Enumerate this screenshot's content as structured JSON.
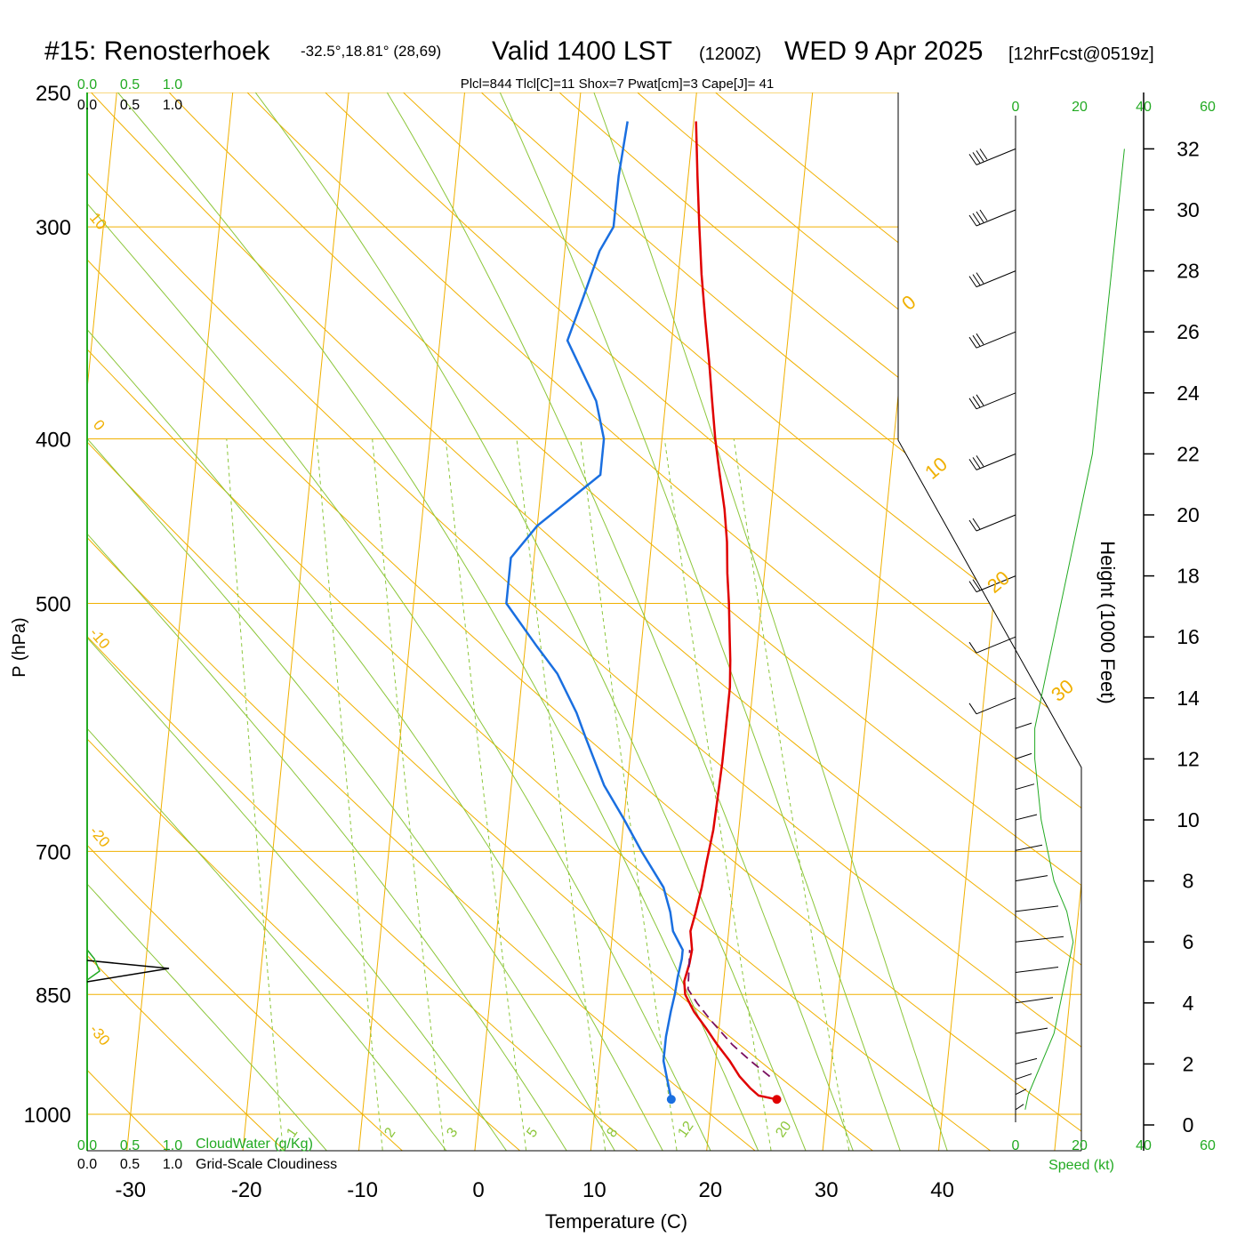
{
  "header": {
    "station": "#15: Renosterhoek",
    "coords": "-32.5°,18.81° (28,69)",
    "valid": "Valid 1400 LST",
    "zulu": "(1200Z)",
    "date": "WED 9 Apr 2025",
    "forecast": "[12hrFcst@0519z]"
  },
  "indices": "Plcl=844 Tlcl[C]=11 Shox=7 Pwat[cm]=3 Cape[J]= 41",
  "colors": {
    "temperature": "#e00000",
    "dewpoint": "#1a6fe0",
    "parcel": "#7a1060",
    "isotherm": "#f0b000",
    "dry_adiabat": "#f0b000",
    "moist_adiabat": "#8cc63a",
    "mixing_ratio": "#8cc63a",
    "cloud_label": "#22aa22",
    "wind_speed_line": "#22aa22",
    "indices_text": "#a0104a"
  },
  "cloud_scale": {
    "top_green": [
      "0.0",
      "0.5",
      "1.0"
    ],
    "top_black": [
      "0.0",
      "0.5",
      "1.0"
    ],
    "bottom_green": [
      "0.0",
      "0.5",
      "1.0"
    ],
    "bottom_black": [
      "0.0",
      "0.5",
      "1.0"
    ],
    "cloudwater_label": "CloudWater (g/Kg)",
    "cloudiness_label": "Grid-Scale Cloudiness"
  },
  "speed_scale": {
    "top": [
      "0",
      "20",
      "40",
      "60"
    ],
    "bottom": [
      "0",
      "20",
      "40",
      "60"
    ],
    "label": "Speed (kt)"
  },
  "mixing_ratio_labels": [
    "1",
    "2",
    "3",
    "5",
    "8",
    "12",
    "20"
  ],
  "dry_adiabat_labels": [
    "10",
    "0",
    "-10",
    "-20",
    "-30"
  ],
  "moist_adiabat_labels": [
    "0",
    "10",
    "20",
    "30"
  ],
  "chart_data": {
    "type": "line",
    "title": "#15: Renosterhoek",
    "xlabel": "Temperature (C)",
    "ylabel": "P (hPa)",
    "y2label": "Height (1000 Feet)",
    "xlim": [
      -34,
      36
    ],
    "ylim": [
      1050,
      250
    ],
    "log_y": true,
    "x_ticks": [
      "-30",
      "-20",
      "-10",
      "0",
      "10",
      "20",
      "30",
      "40"
    ],
    "y_ticks": [
      "250",
      "300",
      "400",
      "500",
      "700",
      "850",
      "1000"
    ],
    "height_ticks": [
      "0",
      "2",
      "4",
      "6",
      "8",
      "10",
      "12",
      "14",
      "16",
      "18",
      "20",
      "22",
      "24",
      "26",
      "28",
      "30",
      "32"
    ],
    "series": [
      {
        "name": "Temperature",
        "p": [
          980,
          975,
          965,
          950,
          930,
          910,
          890,
          870,
          850,
          835,
          815,
          800,
          780,
          760,
          735,
          710,
          680,
          650,
          620,
          590,
          560,
          540,
          520,
          500,
          480,
          460,
          440,
          420,
          400,
          380,
          360,
          340,
          320,
          300,
          280,
          260
        ],
        "t": [
          25.6,
          24.0,
          23.2,
          22.2,
          21.2,
          20.0,
          18.9,
          17.7,
          16.8,
          16.6,
          16.9,
          17.0,
          16.7,
          17.0,
          17.3,
          17.5,
          17.8,
          17.9,
          18.0,
          18.0,
          18.0,
          17.8,
          17.5,
          17.2,
          16.8,
          16.5,
          16.0,
          15.3,
          14.6,
          14.0,
          13.4,
          12.7,
          12.0,
          11.4,
          10.8,
          10.2
        ]
      },
      {
        "name": "Dewpoint",
        "p": [
          980,
          930,
          900,
          870,
          850,
          830,
          810,
          800,
          780,
          760,
          735,
          700,
          670,
          640,
          600,
          580,
          550,
          530,
          500,
          470,
          450,
          420,
          400,
          380,
          350,
          330,
          310,
          300,
          280,
          260
        ],
        "t": [
          16.5,
          15.5,
          15.5,
          15.7,
          15.9,
          16.0,
          16.2,
          16.2,
          15.2,
          14.8,
          14.0,
          11.8,
          10.0,
          8.0,
          6.0,
          5.0,
          3.0,
          1.0,
          -2.0,
          -2.0,
          0.0,
          5.0,
          5.0,
          4.0,
          1.0,
          2.0,
          3.0,
          4.0,
          4.0,
          4.3
        ]
      },
      {
        "name": "Parcel",
        "p": [
          950,
          930,
          910,
          880,
          860,
          844,
          820,
          800
        ],
        "t": [
          24.8,
          23.0,
          21.3,
          19.2,
          17.9,
          17.0,
          16.9,
          16.8
        ]
      }
    ],
    "surface_temperature_marker": 25.6,
    "surface_dewpoint_marker": 16.5,
    "wind_profile": {
      "height_kft": [
        0.5,
        1.0,
        1.5,
        2.0,
        3.0,
        4.0,
        5.0,
        6.0,
        7.0,
        8.0,
        9.0,
        10.0,
        11.0,
        12.0,
        13.0,
        14.0,
        16.0,
        18.0,
        20.0,
        22.0,
        24.0,
        26.0,
        28.0,
        30.0,
        32.0
      ],
      "speed_kt": [
        3,
        4,
        6,
        8,
        12,
        14,
        16,
        18,
        16,
        12,
        10,
        8,
        7,
        6,
        6,
        8,
        12,
        16,
        20,
        24,
        26,
        28,
        30,
        32,
        34
      ]
    }
  }
}
